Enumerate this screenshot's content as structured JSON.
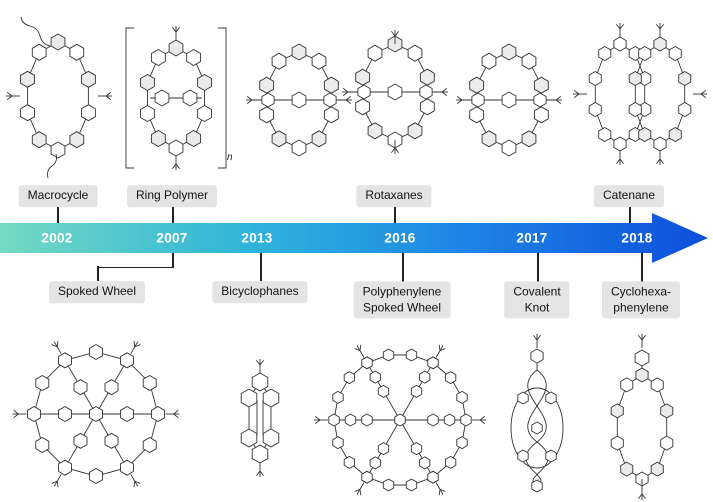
{
  "timeline": {
    "years": [
      "2002",
      "2007",
      "2013",
      "2016",
      "2017",
      "2018"
    ]
  },
  "labels_top": [
    {
      "line1": "Macrocycle"
    },
    {
      "line1": "Ring Polymer"
    },
    {
      "line1": "Rotaxanes"
    },
    {
      "line1": "Catenane"
    }
  ],
  "labels_bottom": [
    {
      "line1": "Spoked Wheel"
    },
    {
      "line1": "Bicyclophanes"
    },
    {
      "line1": "Polyphenylene",
      "line2": "Spoked Wheel"
    },
    {
      "line1": "Covalent",
      "line2": "Knot"
    },
    {
      "line1": "Cyclohexa-",
      "line2": "phenylene"
    }
  ],
  "polymer_subscript": "n",
  "structures": {
    "top": [
      "macrocycle",
      "ring-polymer",
      "rotaxane",
      "rotaxane",
      "rotaxane",
      "catenane"
    ],
    "bottom": [
      "spoked-wheel",
      "bicyclophane",
      "polyphenylene-spoked-wheel",
      "covalent-knot",
      "cyclohexaphenylene"
    ]
  },
  "colors": {
    "timeline_start": "#74dac2",
    "timeline_mid1": "#2fb4da",
    "timeline_mid2": "#1f86e6",
    "timeline_end": "#0d4fdb",
    "label_bg": "#e4e4e4",
    "connector": "#222222",
    "stroke": "#333333",
    "year_text": "#ffffff"
  }
}
